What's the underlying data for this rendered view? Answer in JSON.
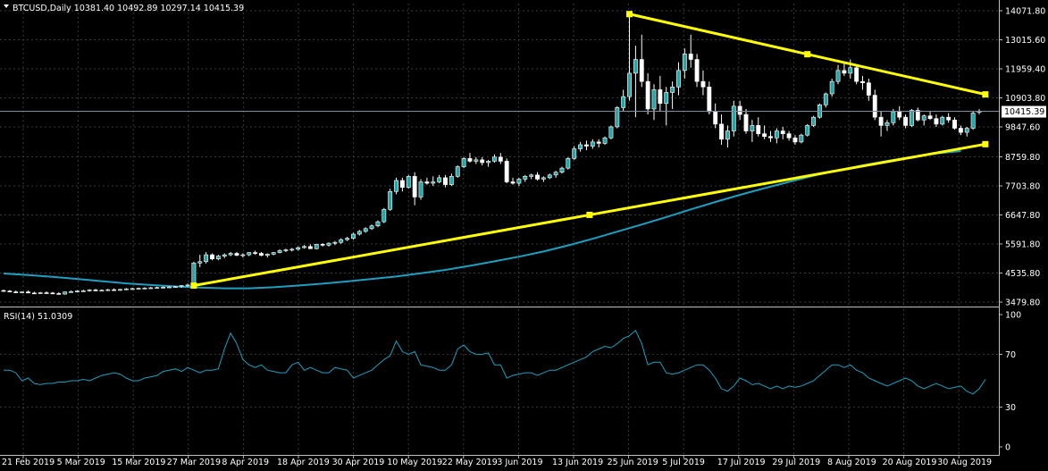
{
  "chart_data": [
    {
      "type": "candlestick",
      "symbol_header": "BTCUSD,Daily  10381.40 10492.89 10297.14 10415.39",
      "current_price": "10415.39",
      "y_ticks": [
        "14071.80",
        "13015.60",
        "11959.40",
        "10903.80",
        "9847.60",
        "8759.80",
        "7703.80",
        "6647.80",
        "5591.80",
        "4535.80",
        "3479.80"
      ],
      "ylim": [
        3479.8,
        14071.8
      ],
      "x_tick_labels": [
        "21 Feb 2019",
        "5 Mar 2019",
        "15 Mar 2019",
        "27 Mar 2019",
        "8 Apr 2019",
        "18 Apr 2019",
        "30 Apr 2019",
        "10 May 2019",
        "22 May 2019",
        "3 Jun 2019",
        "13 Jun 2019",
        "25 Jun 2019",
        "5 Jul 2019",
        "17 Jul 2019",
        "29 Jul 2019",
        "8 Aug 2019",
        "20 Aug 2019",
        "30 Aug 2019"
      ],
      "candles": [
        [
          3900,
          3930,
          3860,
          3880
        ],
        [
          3880,
          3920,
          3840,
          3850
        ],
        [
          3850,
          3900,
          3820,
          3830
        ],
        [
          3830,
          3870,
          3800,
          3850
        ],
        [
          3850,
          3900,
          3820,
          3810
        ],
        [
          3810,
          3860,
          3780,
          3800
        ],
        [
          3800,
          3850,
          3770,
          3820
        ],
        [
          3820,
          3870,
          3790,
          3810
        ],
        [
          3810,
          3850,
          3770,
          3790
        ],
        [
          3790,
          3840,
          3760,
          3770
        ],
        [
          3770,
          3860,
          3750,
          3850
        ],
        [
          3850,
          3900,
          3820,
          3860
        ],
        [
          3860,
          3910,
          3830,
          3880
        ],
        [
          3880,
          3930,
          3850,
          3890
        ],
        [
          3890,
          3950,
          3860,
          3920
        ],
        [
          3920,
          3960,
          3880,
          3900
        ],
        [
          3900,
          3940,
          3870,
          3910
        ],
        [
          3910,
          3960,
          3880,
          3930
        ],
        [
          3930,
          3980,
          3900,
          3920
        ],
        [
          3920,
          3960,
          3890,
          3940
        ],
        [
          3940,
          3990,
          3910,
          3960
        ],
        [
          3960,
          4000,
          3930,
          3970
        ],
        [
          3970,
          4010,
          3940,
          3980
        ],
        [
          3980,
          4020,
          3950,
          3990
        ],
        [
          3990,
          4030,
          3960,
          4000
        ],
        [
          4000,
          4040,
          3970,
          4010
        ],
        [
          4010,
          4050,
          3980,
          4020
        ],
        [
          4020,
          4060,
          3990,
          4030
        ],
        [
          4030,
          4070,
          4000,
          4040
        ],
        [
          4040,
          4100,
          4000,
          4080
        ],
        [
          4080,
          4150,
          4040,
          4100
        ],
        [
          4100,
          4950,
          4080,
          4900
        ],
        [
          4900,
          5200,
          4750,
          4950
        ],
        [
          4950,
          5300,
          4880,
          5200
        ],
        [
          5200,
          5250,
          5000,
          5050
        ],
        [
          5050,
          5200,
          5000,
          5150
        ],
        [
          5150,
          5250,
          5080,
          5200
        ],
        [
          5200,
          5300,
          5150,
          5250
        ],
        [
          5250,
          5300,
          5150,
          5180
        ],
        [
          5180,
          5250,
          5100,
          5200
        ],
        [
          5200,
          5300,
          5150,
          5280
        ],
        [
          5280,
          5350,
          5200,
          5250
        ],
        [
          5250,
          5300,
          5150,
          5180
        ],
        [
          5180,
          5250,
          5100,
          5220
        ],
        [
          5220,
          5300,
          5180,
          5280
        ],
        [
          5280,
          5400,
          5250,
          5350
        ],
        [
          5350,
          5420,
          5300,
          5380
        ],
        [
          5380,
          5450,
          5320,
          5400
        ],
        [
          5400,
          5500,
          5350,
          5460
        ],
        [
          5460,
          5550,
          5420,
          5500
        ],
        [
          5500,
          5580,
          5450,
          5420
        ],
        [
          5420,
          5600,
          5400,
          5580
        ],
        [
          5580,
          5620,
          5500,
          5550
        ],
        [
          5550,
          5650,
          5500,
          5620
        ],
        [
          5620,
          5700,
          5550,
          5650
        ],
        [
          5650,
          5800,
          5600,
          5750
        ],
        [
          5750,
          5850,
          5700,
          5800
        ],
        [
          5800,
          6000,
          5750,
          5950
        ],
        [
          5950,
          6100,
          5900,
          6050
        ],
        [
          6050,
          6200,
          6000,
          6150
        ],
        [
          6150,
          6300,
          6100,
          6250
        ],
        [
          6250,
          6450,
          6200,
          6400
        ],
        [
          6400,
          6900,
          6350,
          6850
        ],
        [
          6850,
          7600,
          6800,
          7500
        ],
        [
          7500,
          8000,
          7400,
          7900
        ],
        [
          7900,
          8000,
          7500,
          7650
        ],
        [
          7650,
          8100,
          7600,
          8050
        ],
        [
          8050,
          8200,
          7000,
          7300
        ],
        [
          7300,
          7950,
          7200,
          7850
        ],
        [
          7850,
          8000,
          7750,
          7800
        ],
        [
          7800,
          8050,
          7700,
          7850
        ],
        [
          7850,
          8100,
          7800,
          8000
        ],
        [
          8000,
          8100,
          7650,
          7750
        ],
        [
          7750,
          8150,
          7700,
          8050
        ],
        [
          8050,
          8450,
          8000,
          8400
        ],
        [
          8400,
          8750,
          8350,
          8700
        ],
        [
          8700,
          8900,
          8550,
          8600
        ],
        [
          8600,
          8750,
          8500,
          8650
        ],
        [
          8650,
          8750,
          8450,
          8550
        ],
        [
          8550,
          8650,
          8400,
          8600
        ],
        [
          8600,
          8850,
          8550,
          8750
        ],
        [
          8750,
          8900,
          8500,
          8600
        ],
        [
          8600,
          8700,
          7800,
          7850
        ],
        [
          7850,
          8000,
          7750,
          7800
        ],
        [
          7800,
          8000,
          7700,
          7950
        ],
        [
          7950,
          8100,
          7850,
          8050
        ],
        [
          8050,
          8150,
          7950,
          8100
        ],
        [
          8100,
          8200,
          7900,
          7950
        ],
        [
          7950,
          8050,
          7850,
          8000
        ],
        [
          8000,
          8150,
          7950,
          8100
        ],
        [
          8100,
          8250,
          8000,
          8200
        ],
        [
          8200,
          8400,
          8150,
          8350
        ],
        [
          8350,
          8750,
          8300,
          8700
        ],
        [
          8700,
          9150,
          8650,
          9050
        ],
        [
          9050,
          9300,
          8950,
          9200
        ],
        [
          9200,
          9350,
          9000,
          9150
        ],
        [
          9150,
          9400,
          9050,
          9300
        ],
        [
          9300,
          9400,
          9100,
          9250
        ],
        [
          9250,
          9500,
          9200,
          9450
        ],
        [
          9450,
          9900,
          9400,
          9850
        ],
        [
          9850,
          10600,
          9800,
          10550
        ],
        [
          10550,
          11200,
          10400,
          10950
        ],
        [
          10950,
          13900,
          10800,
          11800
        ],
        [
          11800,
          12800,
          10200,
          12300
        ],
        [
          12300,
          13200,
          11300,
          11500
        ],
        [
          11500,
          11800,
          10300,
          10500
        ],
        [
          10500,
          11400,
          10100,
          11200
        ],
        [
          11200,
          11700,
          10400,
          10700
        ],
        [
          10700,
          11300,
          9900,
          11100
        ],
        [
          11100,
          11500,
          10500,
          11300
        ],
        [
          11300,
          12200,
          11000,
          11900
        ],
        [
          11900,
          12700,
          11600,
          12500
        ],
        [
          12500,
          13200,
          12000,
          12300
        ],
        [
          12300,
          12500,
          11300,
          11500
        ],
        [
          11500,
          11900,
          11000,
          11300
        ],
        [
          11300,
          11500,
          10300,
          10400
        ],
        [
          10400,
          10700,
          9800,
          9950
        ],
        [
          9950,
          10300,
          9200,
          9400
        ],
        [
          9400,
          9900,
          9100,
          9700
        ],
        [
          9700,
          10800,
          9500,
          10600
        ],
        [
          10600,
          10800,
          10100,
          10300
        ],
        [
          10300,
          10500,
          9600,
          9700
        ],
        [
          9700,
          10100,
          9300,
          9900
        ],
        [
          9900,
          10200,
          9500,
          9600
        ],
        [
          9600,
          9900,
          9400,
          9500
        ],
        [
          9500,
          9700,
          9300,
          9450
        ],
        [
          9450,
          9800,
          9250,
          9700
        ],
        [
          9700,
          9850,
          9400,
          9600
        ],
        [
          9600,
          9700,
          9350,
          9450
        ],
        [
          9450,
          9550,
          9200,
          9300
        ],
        [
          9300,
          9600,
          9250,
          9550
        ],
        [
          9550,
          9950,
          9500,
          9900
        ],
        [
          9900,
          10250,
          9850,
          10200
        ],
        [
          10200,
          10700,
          10150,
          10650
        ],
        [
          10650,
          11100,
          10550,
          11050
        ],
        [
          11050,
          11600,
          10950,
          11500
        ],
        [
          11500,
          12100,
          11400,
          11900
        ],
        [
          11900,
          12200,
          11700,
          11800
        ],
        [
          11800,
          12300,
          11600,
          12000
        ],
        [
          12000,
          12100,
          11400,
          11500
        ],
        [
          11500,
          11700,
          11200,
          11450
        ],
        [
          11450,
          11600,
          10800,
          11000
        ],
        [
          11000,
          11200,
          10100,
          10200
        ],
        [
          10200,
          10400,
          9500,
          9900
        ],
        [
          9900,
          10100,
          9700,
          10000
        ],
        [
          10000,
          10500,
          9900,
          10400
        ],
        [
          10400,
          10600,
          10100,
          10200
        ],
        [
          10200,
          10300,
          9800,
          9900
        ],
        [
          9900,
          10500,
          9850,
          10450
        ],
        [
          10450,
          10550,
          10050,
          10100
        ],
        [
          10100,
          10300,
          9900,
          10250
        ],
        [
          10250,
          10400,
          10100,
          10150
        ],
        [
          10150,
          10300,
          9850,
          9950
        ],
        [
          9950,
          10250,
          9900,
          10200
        ],
        [
          10200,
          10350,
          10000,
          10100
        ],
        [
          10100,
          10200,
          9750,
          9800
        ],
        [
          9800,
          9900,
          9550,
          9650
        ],
        [
          9650,
          9850,
          9500,
          9800
        ],
        [
          9800,
          10400,
          9750,
          10350
        ],
        [
          10381.4,
          10492.89,
          10297.14,
          10415.39
        ]
      ],
      "ma": [
        4520,
        4460,
        4400,
        4320,
        4240,
        4160,
        4100,
        4050,
        4010,
        3980,
        3980,
        4020,
        4080,
        4150,
        4230,
        4320,
        4410,
        4530,
        4650,
        4800,
        4960,
        5130,
        5320,
        5540,
        5780,
        6040,
        6300,
        6570,
        6850,
        7120,
        7380,
        7620,
        7850,
        8070,
        8270,
        8450,
        8610,
        8760,
        8880,
        8970
      ],
      "ma_day_indices": [
        0,
        4,
        8,
        12,
        16,
        20,
        24,
        28,
        32,
        36,
        40,
        44,
        48,
        52,
        56,
        60,
        64,
        68,
        72,
        76,
        80,
        84,
        88,
        92,
        96,
        100,
        104,
        108,
        112,
        116,
        120,
        124,
        128,
        132,
        136,
        140,
        144,
        148,
        152,
        156
      ],
      "trendlines": [
        {
          "from_day": 31,
          "from_price": 4080,
          "to_day": 160,
          "to_price": 9220
        },
        {
          "from_day": 102,
          "from_price": 13950,
          "to_day": 160,
          "to_price": 11030
        }
      ],
      "rsi_label": "RSI(14) 51.0309",
      "rsi_y_ticks": [
        "100",
        "70",
        "30",
        "0"
      ],
      "rsi_levels": [
        70,
        30
      ],
      "rsi": [
        58,
        58,
        56,
        50,
        52,
        48,
        47,
        48,
        48,
        49,
        49,
        50,
        50,
        51,
        50,
        52,
        54,
        55,
        56,
        55,
        52,
        50,
        50,
        52,
        53,
        54,
        57,
        58,
        59,
        57,
        60,
        58,
        56,
        58,
        58,
        59,
        74,
        86,
        78,
        66,
        62,
        60,
        62,
        58,
        57,
        56,
        56,
        62,
        64,
        58,
        60,
        58,
        56,
        56,
        60,
        59,
        58,
        52,
        54,
        56,
        58,
        62,
        66,
        69,
        80,
        72,
        70,
        72,
        62,
        61,
        60,
        58,
        58,
        62,
        74,
        77,
        72,
        70,
        70,
        71,
        62,
        62,
        52,
        54,
        55,
        56,
        56,
        54,
        56,
        58,
        58,
        60,
        62,
        64,
        66,
        68,
        72,
        74,
        76,
        75,
        78,
        82,
        84,
        88,
        78,
        62,
        64,
        64,
        56,
        55,
        56,
        58,
        60,
        62,
        62,
        58,
        52,
        44,
        42,
        46,
        52,
        50,
        47,
        48,
        46,
        44,
        46,
        44,
        46,
        45,
        46,
        48,
        50,
        54,
        58,
        62,
        62,
        60,
        62,
        58,
        56,
        52,
        50,
        48,
        46,
        48,
        50,
        52,
        50,
        46,
        44,
        46,
        48,
        46,
        44,
        45,
        46,
        42,
        40,
        44,
        51
      ]
    }
  ]
}
